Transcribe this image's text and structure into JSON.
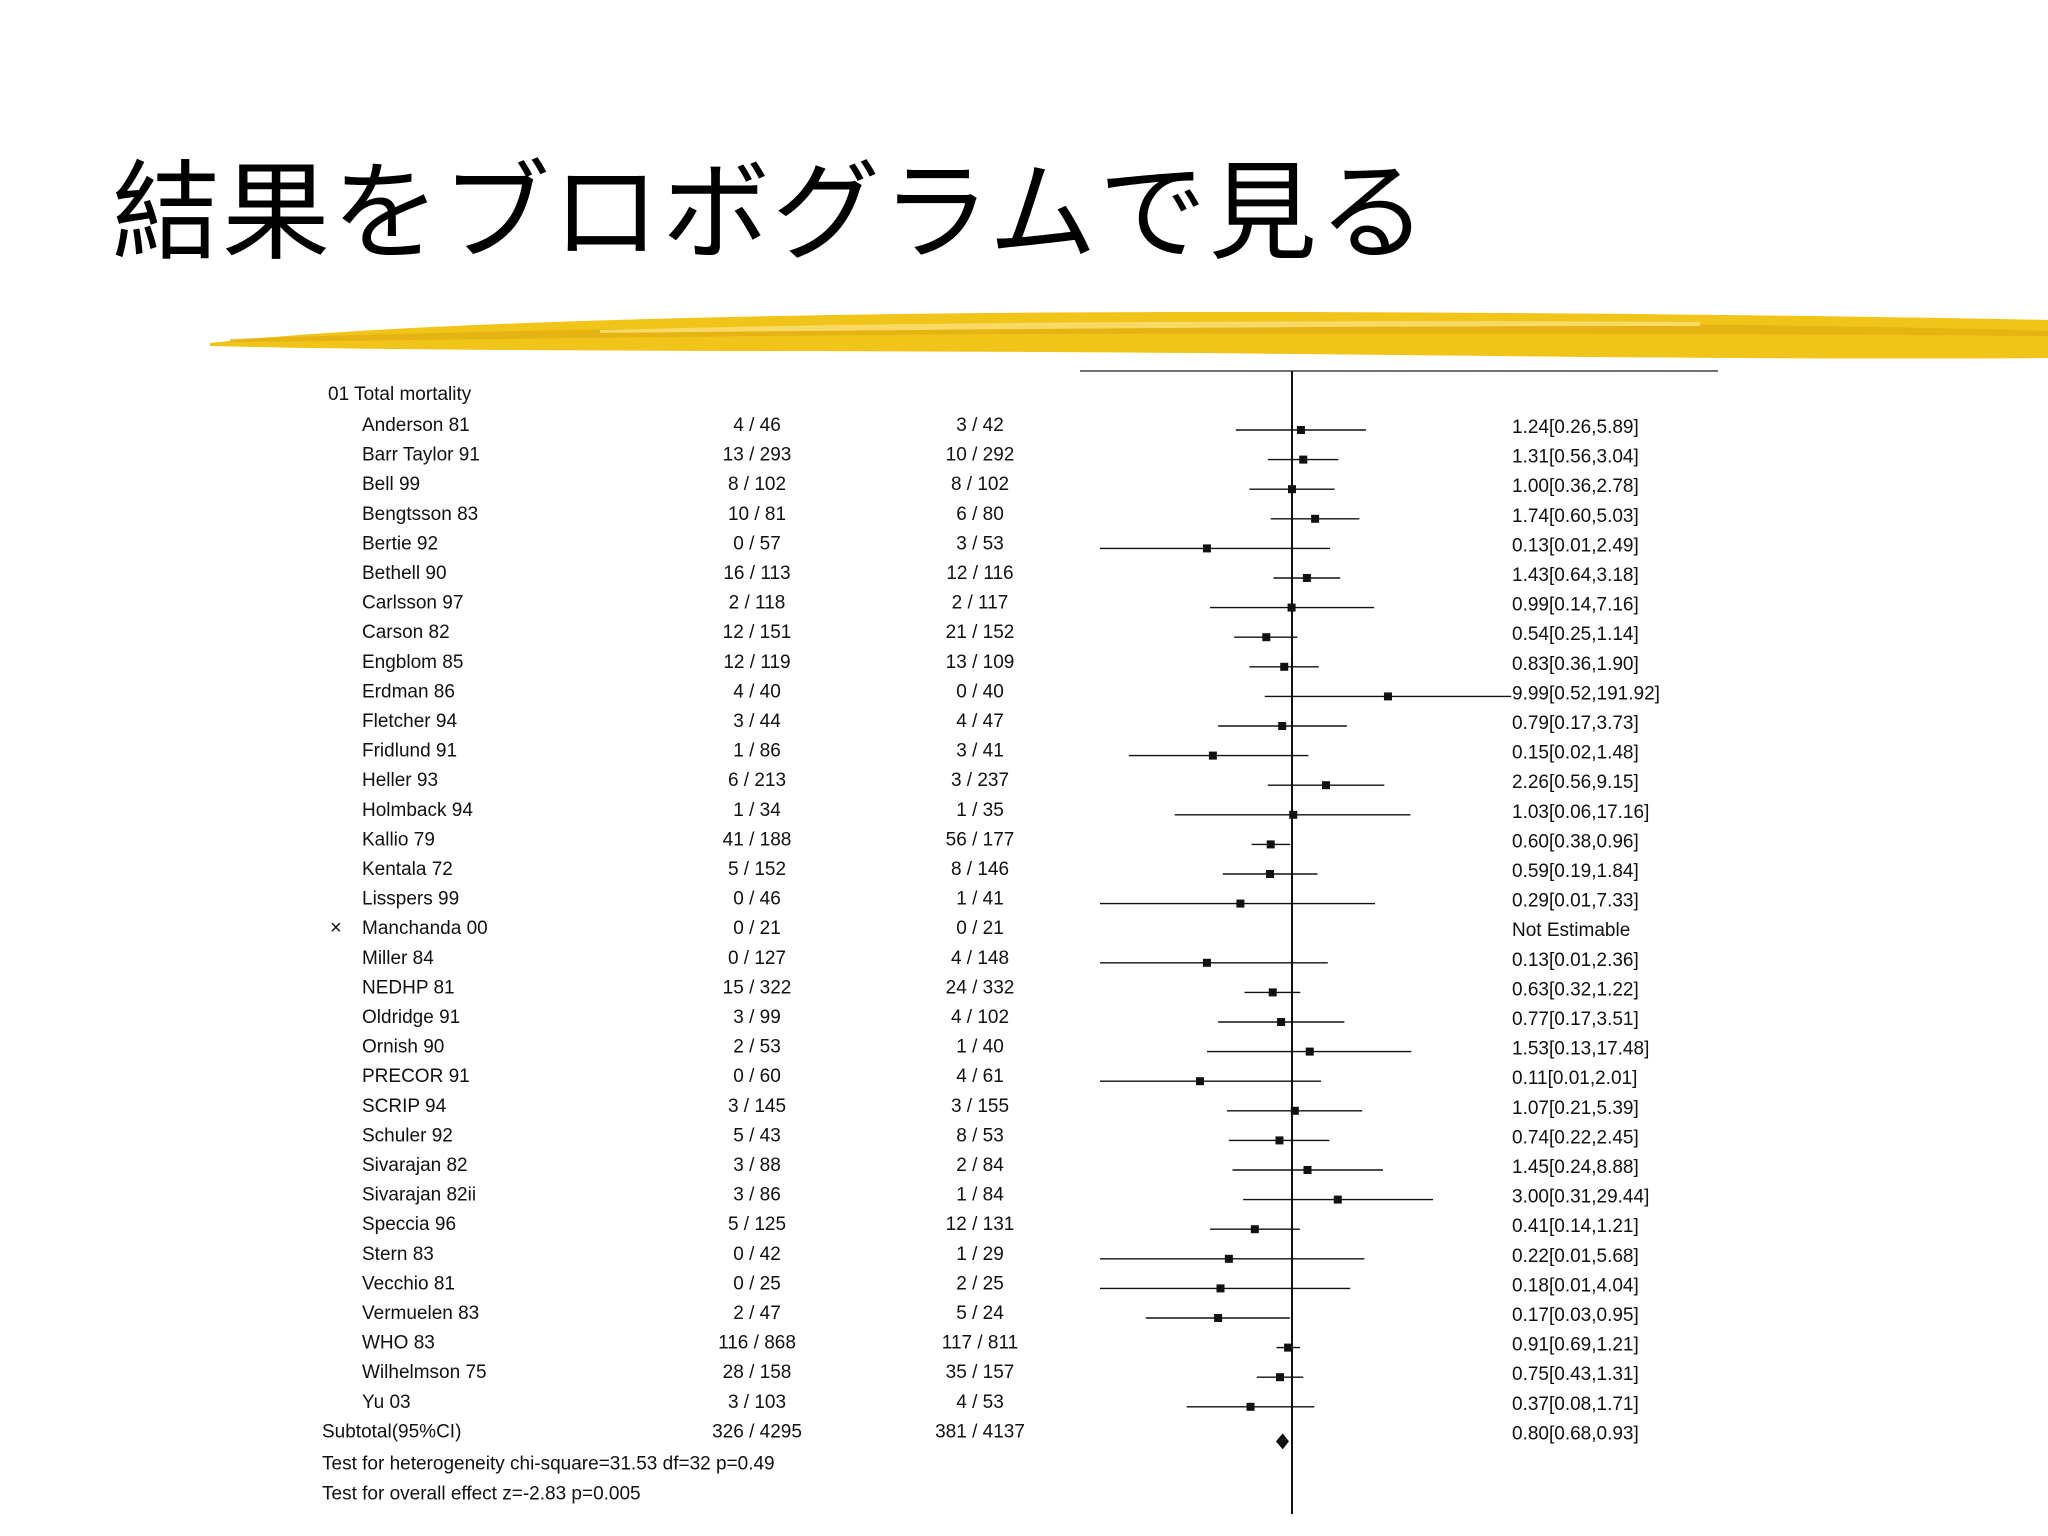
{
  "slide": {
    "title": "結果をブロボグラムで見る"
  },
  "colors": {
    "brush": "#f0c419",
    "brush_dark": "#e0ac10",
    "ink": "#111111"
  },
  "chart_data": {
    "type": "forest",
    "section_label": "01 Total mortality",
    "x_scale": "log",
    "null_value": 1,
    "studies": [
      {
        "name": "Anderson 81",
        "treat": "4 / 46",
        "ctrl": "3 / 42",
        "or": 1.24,
        "lo": 0.26,
        "hi": 5.89,
        "label": "1.24[0.26,5.89]"
      },
      {
        "name": "Barr Taylor 91",
        "treat": "13 / 293",
        "ctrl": "10 / 292",
        "or": 1.31,
        "lo": 0.56,
        "hi": 3.04,
        "label": "1.31[0.56,3.04]"
      },
      {
        "name": "Bell 99",
        "treat": "8 / 102",
        "ctrl": "8 / 102",
        "or": 1.0,
        "lo": 0.36,
        "hi": 2.78,
        "label": "1.00[0.36,2.78]"
      },
      {
        "name": "Bengtsson 83",
        "treat": "10 / 81",
        "ctrl": "6 / 80",
        "or": 1.74,
        "lo": 0.6,
        "hi": 5.03,
        "label": "1.74[0.60,5.03]"
      },
      {
        "name": "Bertie 92",
        "treat": "0 / 57",
        "ctrl": "3 / 53",
        "or": 0.13,
        "lo": 0.01,
        "hi": 2.49,
        "label": "0.13[0.01,2.49]"
      },
      {
        "name": "Bethell 90",
        "treat": "16 / 113",
        "ctrl": "12 / 116",
        "or": 1.43,
        "lo": 0.64,
        "hi": 3.18,
        "label": "1.43[0.64,3.18]"
      },
      {
        "name": "Carlsson 97",
        "treat": "2 / 118",
        "ctrl": "2 / 117",
        "or": 0.99,
        "lo": 0.14,
        "hi": 7.16,
        "label": "0.99[0.14,7.16]"
      },
      {
        "name": "Carson 82",
        "treat": "12 / 151",
        "ctrl": "21 / 152",
        "or": 0.54,
        "lo": 0.25,
        "hi": 1.14,
        "label": "0.54[0.25,1.14]"
      },
      {
        "name": "Engblom 85",
        "treat": "12 / 119",
        "ctrl": "13 / 109",
        "or": 0.83,
        "lo": 0.36,
        "hi": 1.9,
        "label": "0.83[0.36,1.90]"
      },
      {
        "name": "Erdman 86",
        "treat": "4 / 40",
        "ctrl": "0 / 40",
        "or": 9.99,
        "lo": 0.52,
        "hi": 191.92,
        "label": "9.99[0.52,191.92]"
      },
      {
        "name": "Fletcher 94",
        "treat": "3 / 44",
        "ctrl": "4 / 47",
        "or": 0.79,
        "lo": 0.17,
        "hi": 3.73,
        "label": "0.79[0.17,3.73]"
      },
      {
        "name": "Fridlund 91",
        "treat": "1 / 86",
        "ctrl": "3 / 41",
        "or": 0.15,
        "lo": 0.02,
        "hi": 1.48,
        "label": "0.15[0.02,1.48]"
      },
      {
        "name": "Heller 93",
        "treat": "6 / 213",
        "ctrl": "3 / 237",
        "or": 2.26,
        "lo": 0.56,
        "hi": 9.15,
        "label": "2.26[0.56,9.15]"
      },
      {
        "name": "Holmback 94",
        "treat": "1 / 34",
        "ctrl": "1 / 35",
        "or": 1.03,
        "lo": 0.06,
        "hi": 17.16,
        "label": "1.03[0.06,17.16]"
      },
      {
        "name": "Kallio 79",
        "treat": "41 / 188",
        "ctrl": "56 / 177",
        "or": 0.6,
        "lo": 0.38,
        "hi": 0.96,
        "label": "0.60[0.38,0.96]"
      },
      {
        "name": "Kentala 72",
        "treat": "5 / 152",
        "ctrl": "8 / 146",
        "or": 0.59,
        "lo": 0.19,
        "hi": 1.84,
        "label": "0.59[0.19,1.84]"
      },
      {
        "name": "Lisspers 99",
        "treat": "0 / 46",
        "ctrl": "1 / 41",
        "or": 0.29,
        "lo": 0.01,
        "hi": 7.33,
        "label": "0.29[0.01,7.33]"
      },
      {
        "name": "Manchanda 00",
        "excluded": true,
        "treat": "0 / 21",
        "ctrl": "0 / 21",
        "label": "Not Estimable"
      },
      {
        "name": "Miller 84",
        "treat": "0 / 127",
        "ctrl": "4 / 148",
        "or": 0.13,
        "lo": 0.01,
        "hi": 2.36,
        "label": "0.13[0.01,2.36]"
      },
      {
        "name": "NEDHP 81",
        "treat": "15 / 322",
        "ctrl": "24 / 332",
        "or": 0.63,
        "lo": 0.32,
        "hi": 1.22,
        "label": "0.63[0.32,1.22]"
      },
      {
        "name": "Oldridge 91",
        "treat": "3 / 99",
        "ctrl": "4 / 102",
        "or": 0.77,
        "lo": 0.17,
        "hi": 3.51,
        "label": "0.77[0.17,3.51]"
      },
      {
        "name": "Ornish 90",
        "treat": "2 / 53",
        "ctrl": "1 / 40",
        "or": 1.53,
        "lo": 0.13,
        "hi": 17.48,
        "label": "1.53[0.13,17.48]"
      },
      {
        "name": "PRECOR 91",
        "treat": "0 / 60",
        "ctrl": "4 / 61",
        "or": 0.11,
        "lo": 0.01,
        "hi": 2.01,
        "label": "0.11[0.01,2.01]"
      },
      {
        "name": "SCRIP 94",
        "treat": "3 / 145",
        "ctrl": "3 / 155",
        "or": 1.07,
        "lo": 0.21,
        "hi": 5.39,
        "label": "1.07[0.21,5.39]"
      },
      {
        "name": "Schuler 92",
        "treat": "5 / 43",
        "ctrl": "8 / 53",
        "or": 0.74,
        "lo": 0.22,
        "hi": 2.45,
        "label": "0.74[0.22,2.45]"
      },
      {
        "name": "Sivarajan 82",
        "treat": "3 / 88",
        "ctrl": "2 / 84",
        "or": 1.45,
        "lo": 0.24,
        "hi": 8.88,
        "label": "1.45[0.24,8.88]"
      },
      {
        "name": "Sivarajan 82ii",
        "treat": "3 / 86",
        "ctrl": "1 / 84",
        "or": 3.0,
        "lo": 0.31,
        "hi": 29.44,
        "label": "3.00[0.31,29.44]"
      },
      {
        "name": "Speccia 96",
        "treat": "5 / 125",
        "ctrl": "12 / 131",
        "or": 0.41,
        "lo": 0.14,
        "hi": 1.21,
        "label": "0.41[0.14,1.21]"
      },
      {
        "name": "Stern 83",
        "treat": "0 / 42",
        "ctrl": "1 / 29",
        "or": 0.22,
        "lo": 0.01,
        "hi": 5.68,
        "label": "0.22[0.01,5.68]"
      },
      {
        "name": "Vecchio 81",
        "treat": "0 / 25",
        "ctrl": "2 / 25",
        "or": 0.18,
        "lo": 0.01,
        "hi": 4.04,
        "label": "0.18[0.01,4.04]"
      },
      {
        "name": "Vermuelen 83",
        "treat": "2 / 47",
        "ctrl": "5 / 24",
        "or": 0.17,
        "lo": 0.03,
        "hi": 0.95,
        "label": "0.17[0.03,0.95]"
      },
      {
        "name": "WHO 83",
        "treat": "116 / 868",
        "ctrl": "117 / 811",
        "or": 0.91,
        "lo": 0.69,
        "hi": 1.21,
        "label": "0.91[0.69,1.21]"
      },
      {
        "name": "Wilhelmson 75",
        "treat": "28 / 158",
        "ctrl": "35 / 157",
        "or": 0.75,
        "lo": 0.43,
        "hi": 1.31,
        "label": "0.75[0.43,1.31]"
      },
      {
        "name": "Yu 03",
        "treat": "3 / 103",
        "ctrl": "4 / 53",
        "or": 0.37,
        "lo": 0.08,
        "hi": 1.71,
        "label": "0.37[0.08,1.71]"
      }
    ],
    "subtotal": {
      "name": "Subtotal(95%CI)",
      "treat": "326 / 4295",
      "ctrl": "381 / 4137",
      "or": 0.8,
      "lo": 0.68,
      "hi": 0.93,
      "label": "0.80[0.68,0.93]"
    },
    "footnotes": [
      "Test for heterogeneity chi-square=31.53  df=32  p=0.49",
      "Test for overall effect  z=-2.83  p=0.005"
    ]
  }
}
